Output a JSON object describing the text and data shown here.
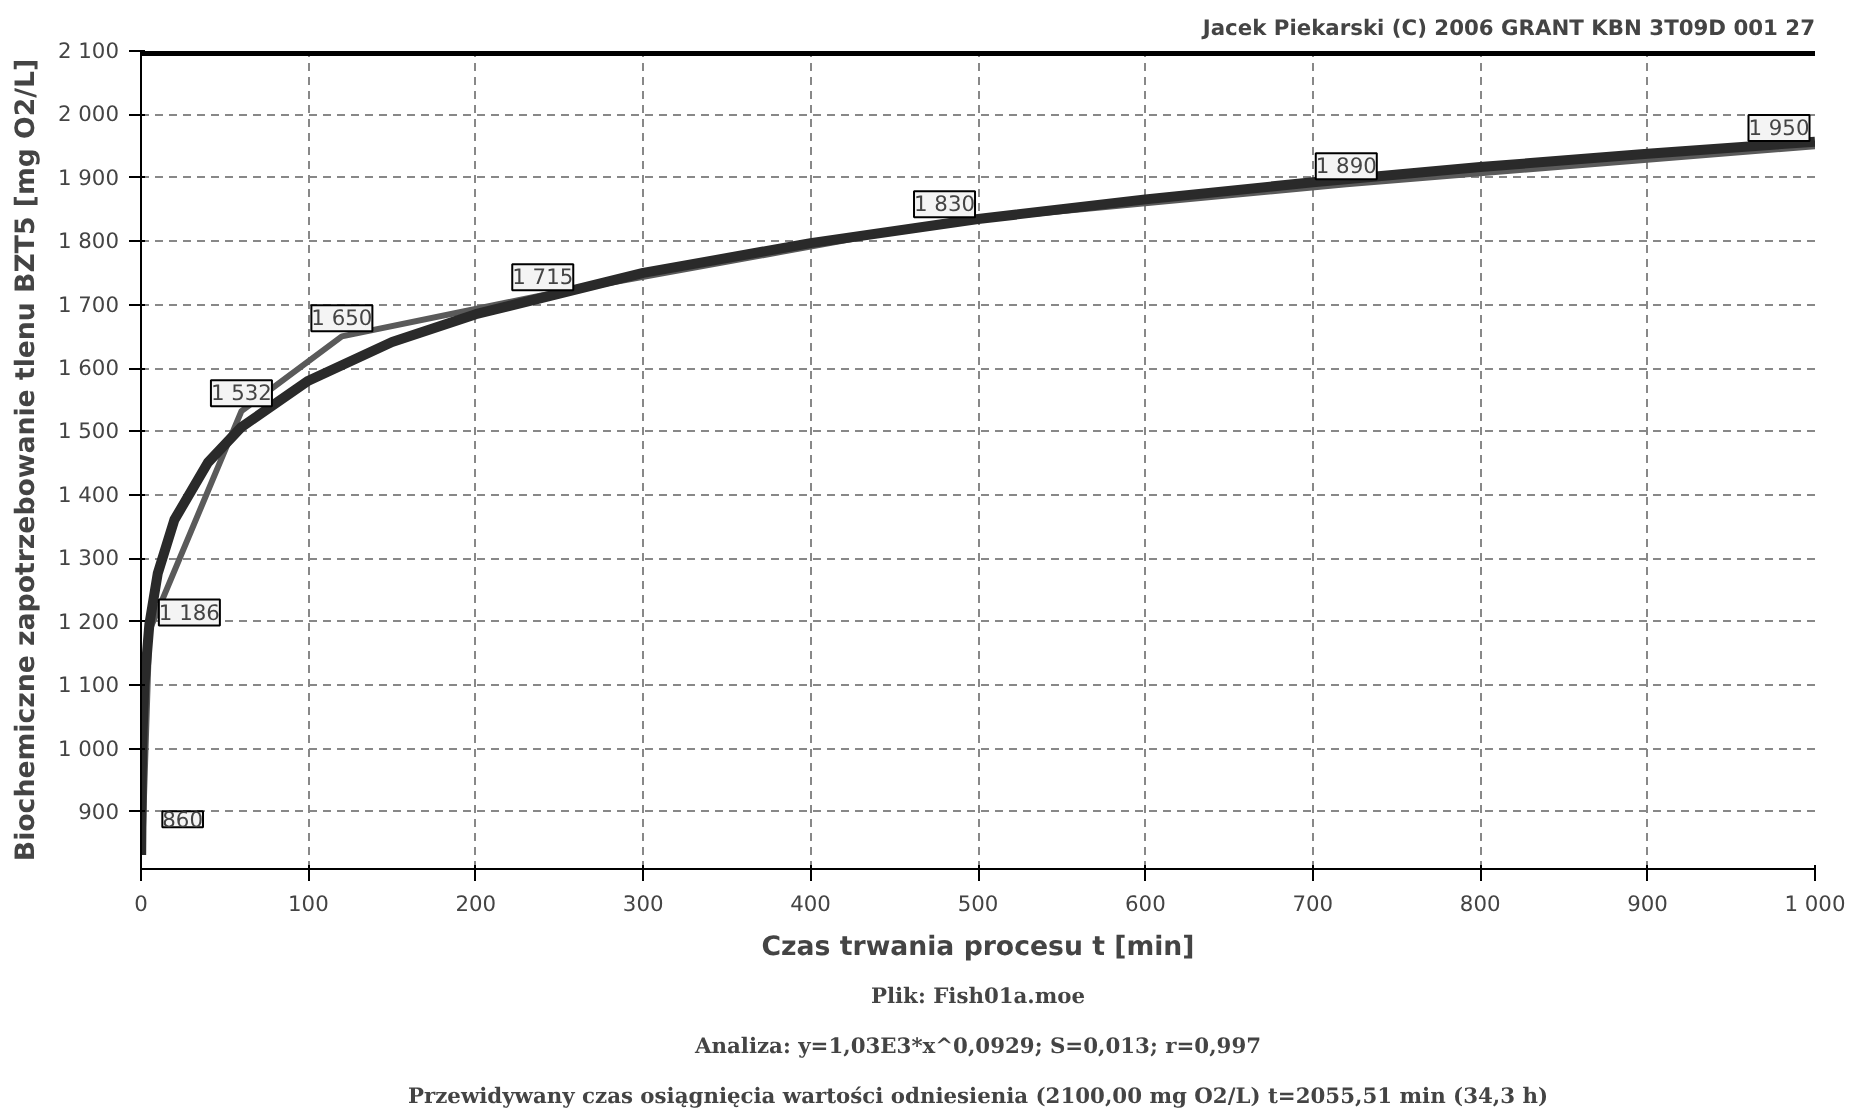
{
  "chart_data": {
    "type": "line",
    "title": "Jacek Piekarski (C) 2006 GRANT KBN 3T09D 001 27",
    "xlabel": "Czas trwania procesu t [min]",
    "ylabel": "Biochemiczne zapotrzebowanie tlenu BZT5 [mg O2/L]",
    "annotations": [
      "Plik: Fish01a.moe",
      "Analiza: y=1,03E3*x^0,0929; S=0,013; r=0,997",
      "Przewidywany czas osiągnięcia wartości odniesienia (2100,00 mg O2/L) t=2055,51 min (34,3 h)"
    ],
    "series": [
      {
        "type": "line",
        "color": "#5a5a5a",
        "x": [
          1,
          5,
          60,
          120,
          240,
          480,
          720,
          1000
        ],
        "values": [
          860,
          1186,
          1532,
          1650,
          1715,
          1830,
          1890,
          1950
        ],
        "value_labels": [
          "860",
          "1 186",
          "1 532",
          "1 650",
          "1 715",
          "1 830",
          "1 890",
          "1 950"
        ]
      },
      {
        "type": "line",
        "color": "#2a2a2a",
        "x": [
          0.1,
          0.5,
          1,
          2,
          5,
          10,
          20,
          40,
          60,
          100,
          150,
          200,
          300,
          400,
          500,
          600,
          700,
          800,
          900,
          1000
        ],
        "values": [
          832,
          966,
          1030,
          1099,
          1196,
          1276,
          1361,
          1451,
          1507,
          1580,
          1641,
          1685,
          1750,
          1797,
          1835,
          1866,
          1893,
          1917,
          1938,
          1957
        ]
      }
    ],
    "ref_lines": [
      {
        "axis": "y",
        "value": 2100,
        "color": "#000000"
      }
    ],
    "xlim": [
      0,
      1000
    ],
    "ylim": [
      810,
      2100
    ],
    "xticks": [
      0,
      100,
      200,
      300,
      400,
      500,
      600,
      700,
      800,
      900,
      {
        "value": 1000,
        "label": "1 000"
      }
    ],
    "yticks": [
      900,
      {
        "value": 1000,
        "label": "1 000"
      },
      {
        "value": 1100,
        "label": "1 100"
      },
      {
        "value": 1200,
        "label": "1 200"
      },
      {
        "value": 1300,
        "label": "1 300"
      },
      {
        "value": 1400,
        "label": "1 400"
      },
      {
        "value": 1500,
        "label": "1 500"
      },
      {
        "value": 1600,
        "label": "1 600"
      },
      {
        "value": 1700,
        "label": "1 700"
      },
      {
        "value": 1800,
        "label": "1 800"
      },
      {
        "value": 1900,
        "label": "1 900"
      },
      {
        "value": 2000,
        "label": "2 000"
      },
      {
        "value": 2100,
        "label": "2 100"
      }
    ],
    "grid": true
  }
}
